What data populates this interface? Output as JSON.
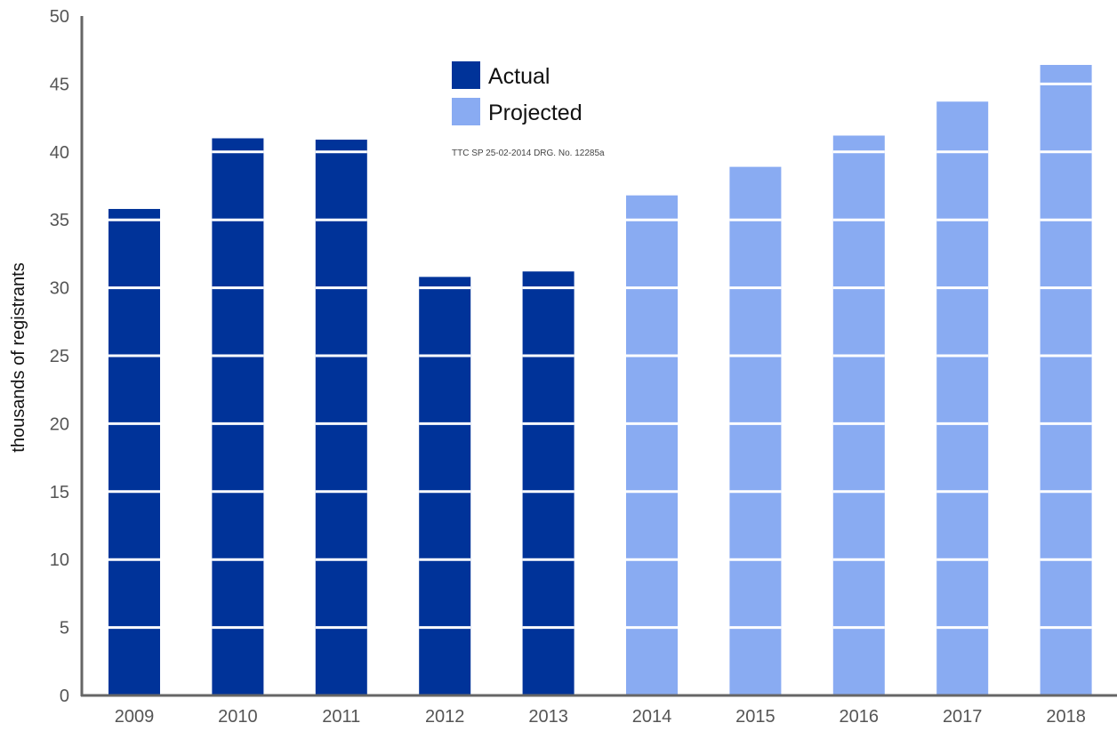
{
  "chart_data": {
    "type": "bar",
    "categories": [
      "2009",
      "2010",
      "2011",
      "2012",
      "2013",
      "2014",
      "2015",
      "2016",
      "2017",
      "2018"
    ],
    "series": [
      {
        "name": "Actual",
        "values": [
          35.8,
          41.0,
          40.9,
          30.8,
          31.2,
          null,
          null,
          null,
          null,
          null
        ]
      },
      {
        "name": "Projected",
        "values": [
          null,
          null,
          null,
          null,
          null,
          36.8,
          38.9,
          41.2,
          43.7,
          46.4
        ]
      }
    ],
    "xlabel": "",
    "ylabel": "thousands of registrants",
    "ylim": [
      0,
      50
    ],
    "yticks": [
      0,
      5,
      10,
      15,
      20,
      25,
      30,
      35,
      40,
      45,
      50
    ],
    "grid": false,
    "segment_lines_every": 5,
    "legend_position": "top-center",
    "annotation": "TTC SP 25-02-2014 DRG. No. 12285a",
    "colors": {
      "Actual": "#003399",
      "Projected": "#89abf2",
      "axis": "#666666",
      "segment_line": "#ffffff"
    }
  }
}
